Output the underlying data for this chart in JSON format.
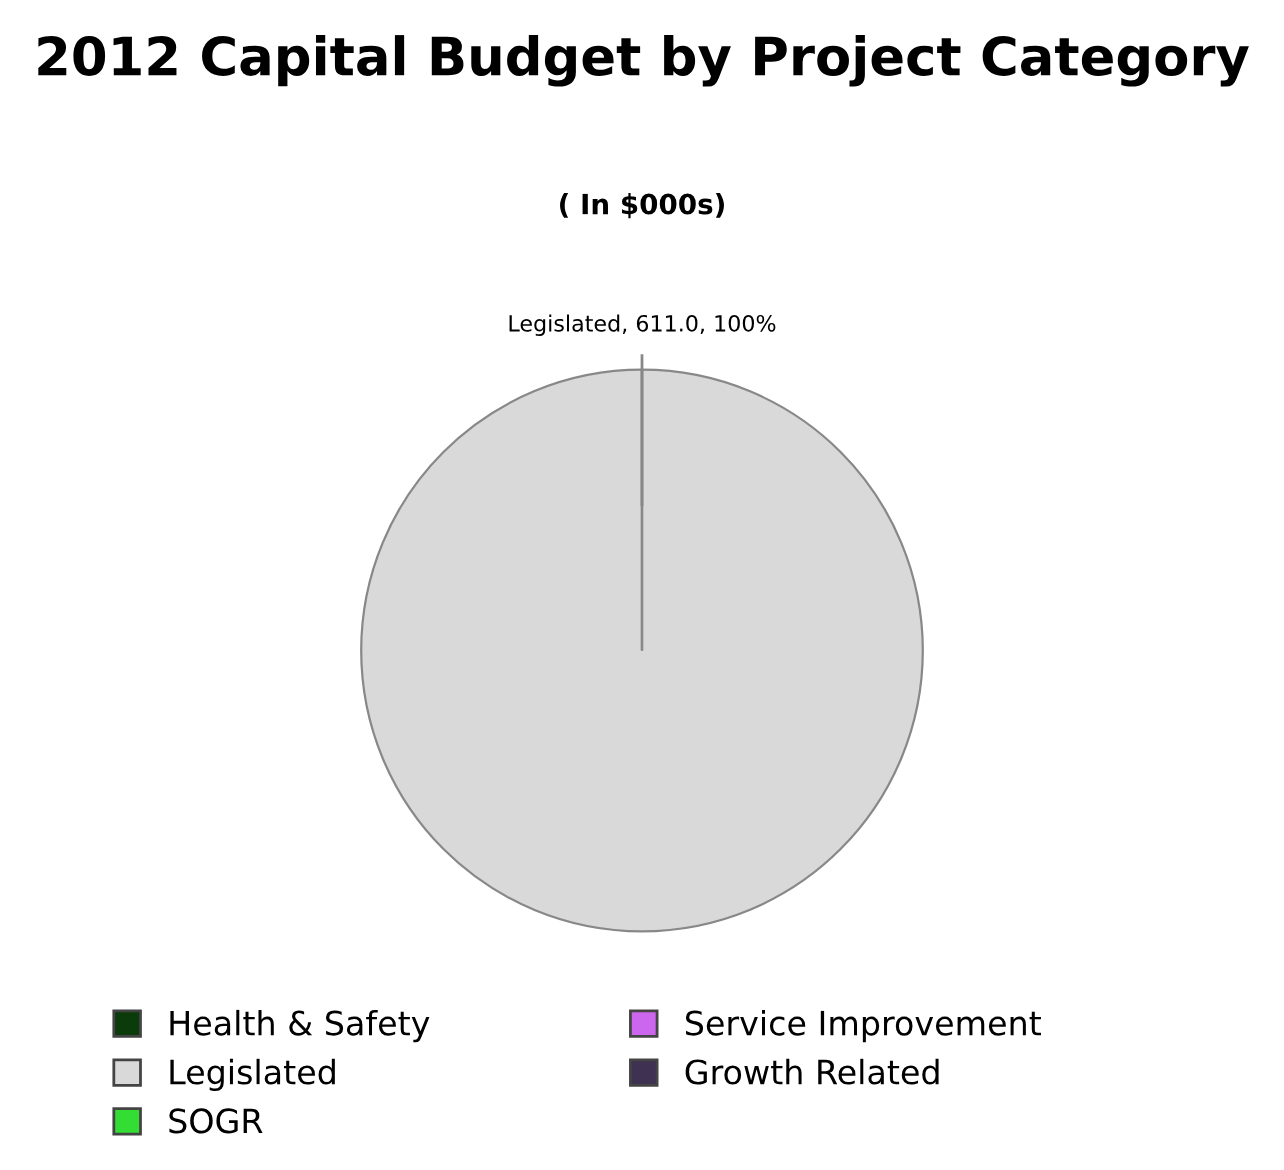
{
  "chart_data": {
    "type": "pie",
    "title": "2012 Capital Budget by Project Category",
    "subtitle": "( In $000s)",
    "categories": [
      "Health & Safety",
      "Legislated",
      "SOGR",
      "Service Improvement",
      "Growth Related"
    ],
    "values": [
      0,
      611.0,
      0,
      0,
      0
    ],
    "colors": [
      "#0b3a0b",
      "#d9d9d9",
      "#33dd33",
      "#cc66ee",
      "#3f3151"
    ],
    "value_labels": [
      null,
      "Legislated, 611.0, 100%",
      null,
      null,
      null
    ],
    "legend": "bottom"
  }
}
